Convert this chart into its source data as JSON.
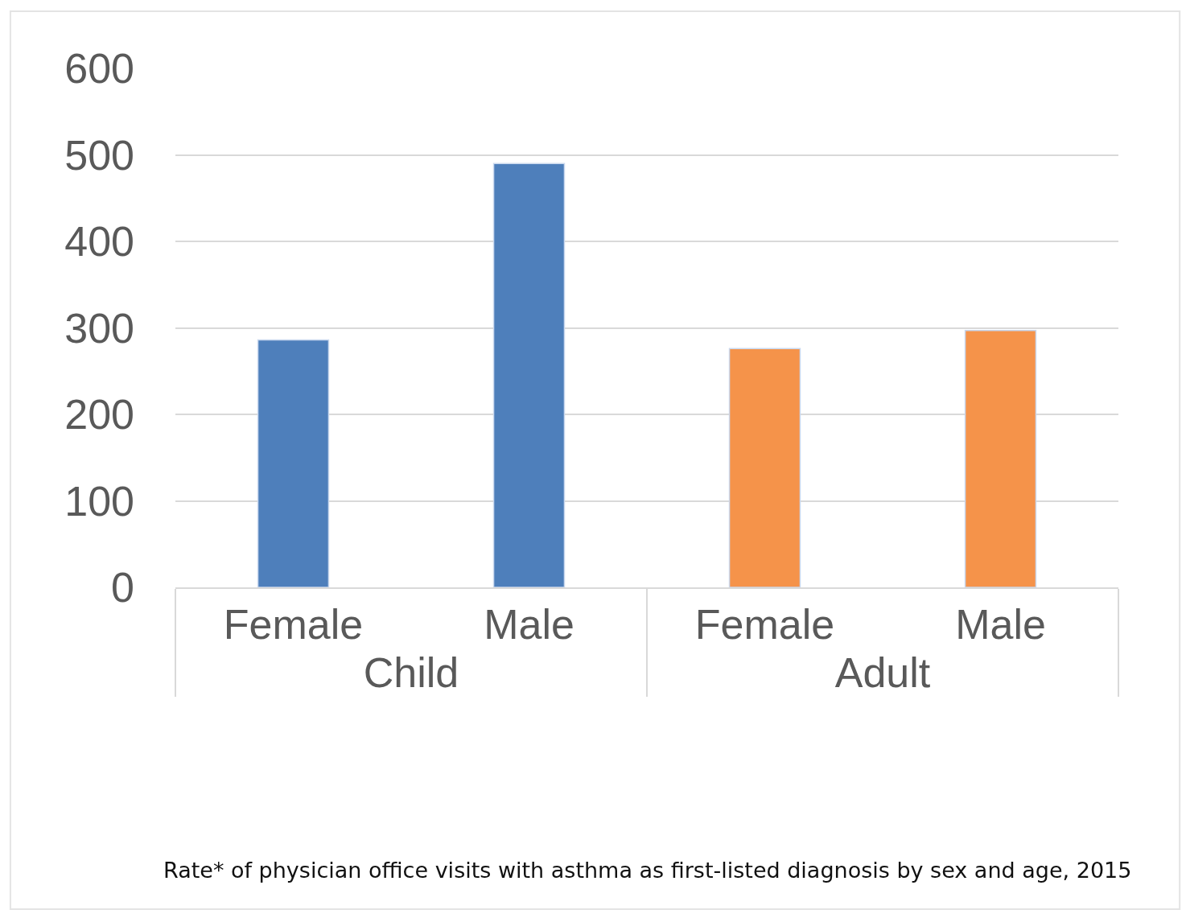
{
  "chart_data": {
    "type": "bar",
    "categories": [
      "Female",
      "Male",
      "Female",
      "Male"
    ],
    "series": [
      {
        "name": "Child",
        "color": "#4e7fbb",
        "values": [
          286,
          490,
          null,
          null
        ]
      },
      {
        "name": "Adult",
        "color": "#f5934a",
        "values": [
          null,
          null,
          276,
          297
        ]
      }
    ],
    "ylim": [
      0,
      600
    ],
    "yticks": [
      0,
      100,
      200,
      300,
      400,
      500,
      600
    ],
    "grid": "y",
    "legend": false,
    "annotations": [
      "Rate* of physician office visits with asthma as first-listed diagnosis by sex and age, 2015"
    ]
  }
}
